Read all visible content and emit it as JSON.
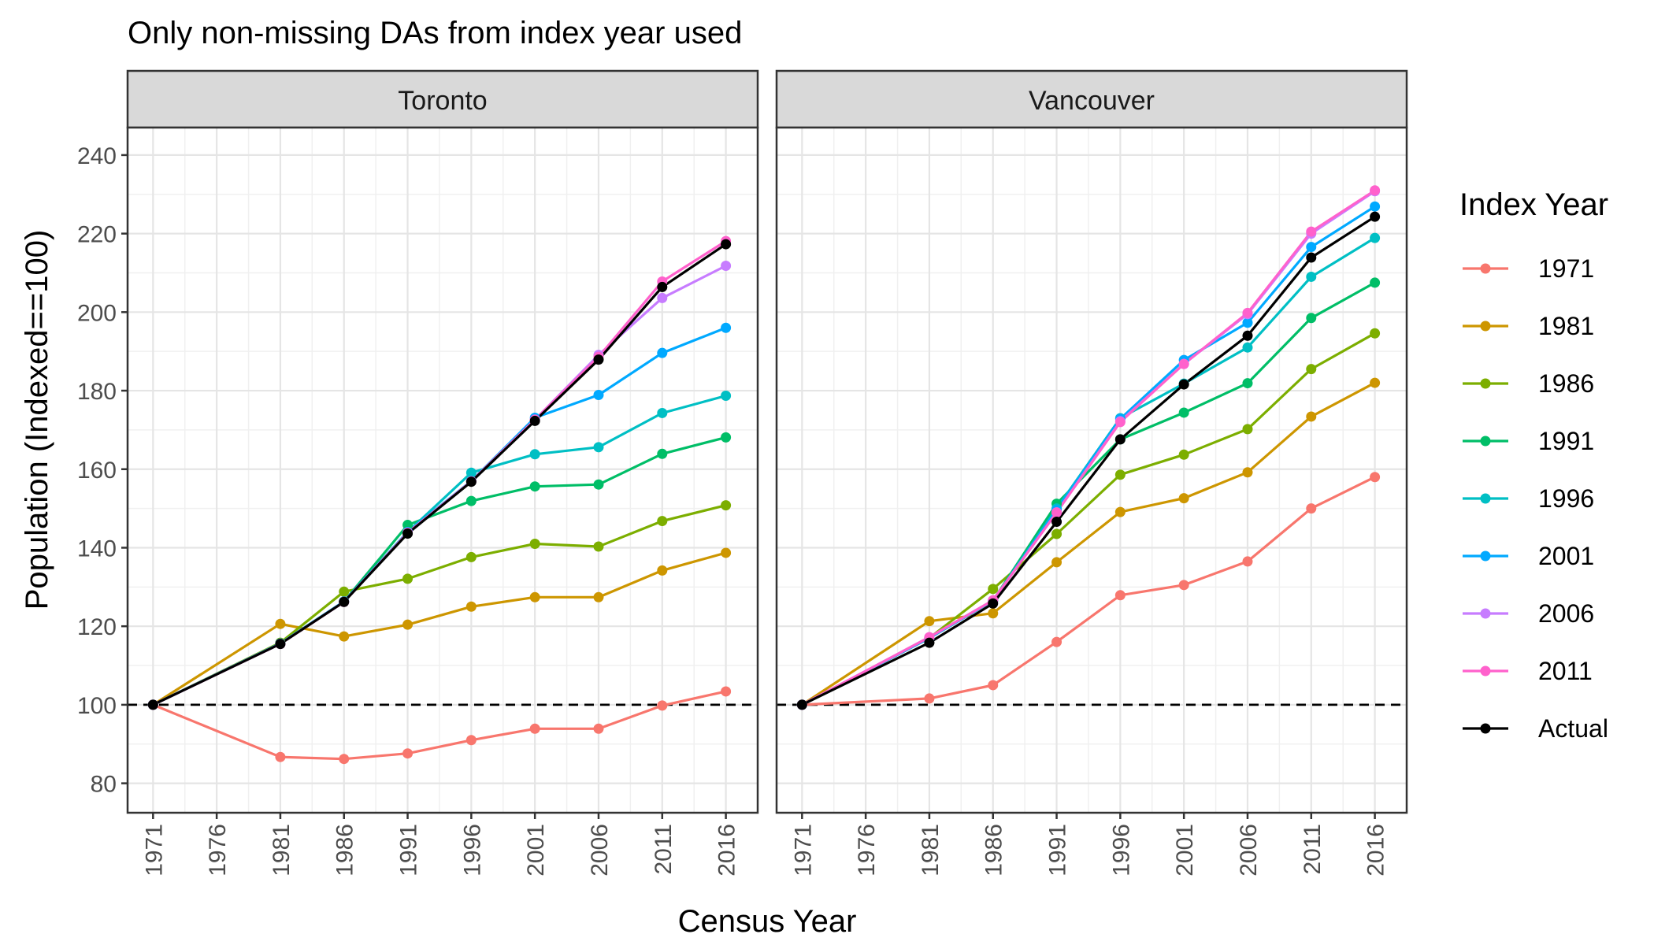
{
  "chart_data": {
    "type": "line",
    "title": "Only non-missing DAs from index year used",
    "xlabel": "Census Year",
    "ylabel": "Population (Indexed==100)",
    "x_ticks": [
      "1971",
      "1976",
      "1981",
      "1986",
      "1991",
      "1996",
      "2001",
      "2006",
      "2011",
      "2016"
    ],
    "xlim": [
      1969,
      2018.5
    ],
    "ylim": [
      72.5,
      247
    ],
    "y_ticks": [
      80,
      100,
      120,
      140,
      160,
      180,
      200,
      220,
      240
    ],
    "reference_line": {
      "y": 100,
      "style": "dashed"
    },
    "grid": true,
    "legend": {
      "title": "Index Year",
      "position": "right",
      "entries": [
        "1971",
        "1981",
        "1986",
        "1991",
        "1996",
        "2001",
        "2006",
        "2011",
        "Actual"
      ]
    },
    "colors": {
      "1971": "#F8766D",
      "1981": "#CD9600",
      "1986": "#7CAE00",
      "1991": "#00BE67",
      "1996": "#00BFC4",
      "2001": "#00A9FF",
      "2006": "#C77CFF",
      "2011": "#FF61CC",
      "Actual": "#000000"
    },
    "panels": [
      {
        "name": "Toronto",
        "series": [
          {
            "name": "1971",
            "x": [
              1971,
              1981,
              1986,
              1991,
              1996,
              2001,
              2006,
              2011,
              2016
            ],
            "y": [
              100,
              86.7,
              86.2,
              87.6,
              91.0,
              93.9,
              93.9,
              99.8,
              103.4
            ]
          },
          {
            "name": "1981",
            "x": [
              1971,
              1981,
              1986,
              1991,
              1996,
              2001,
              2006,
              2011,
              2016
            ],
            "y": [
              100,
              120.6,
              117.4,
              120.4,
              125.0,
              127.4,
              127.4,
              134.2,
              138.7
            ]
          },
          {
            "name": "1986",
            "x": [
              1971,
              1981,
              1986,
              1991,
              1996,
              2001,
              2006,
              2011,
              2016
            ],
            "y": [
              100,
              115.8,
              128.8,
              132.1,
              137.6,
              141.0,
              140.3,
              146.8,
              150.8
            ]
          },
          {
            "name": "1991",
            "x": [
              1971,
              1981,
              1986,
              1991,
              1996,
              2001,
              2006,
              2011,
              2016
            ],
            "y": [
              100,
              115.6,
              126.3,
              145.8,
              151.9,
              155.6,
              156.1,
              163.9,
              168.1
            ]
          },
          {
            "name": "1996",
            "x": [
              1971,
              1981,
              1986,
              1991,
              1996,
              2001,
              2006,
              2011,
              2016
            ],
            "y": [
              100,
              115.6,
              126.3,
              144.0,
              159.1,
              163.8,
              165.6,
              174.3,
              178.7
            ]
          },
          {
            "name": "2001",
            "x": [
              1971,
              1981,
              1986,
              1991,
              1996,
              2001,
              2006,
              2011,
              2016
            ],
            "y": [
              100,
              115.6,
              126.3,
              144.0,
              157.0,
              173.1,
              178.9,
              189.6,
              196.0
            ]
          },
          {
            "name": "2006",
            "x": [
              1971,
              1981,
              1986,
              1991,
              1996,
              2001,
              2006,
              2011,
              2016
            ],
            "y": [
              100,
              115.5,
              126.2,
              143.8,
              156.9,
              172.6,
              189.1,
              203.6,
              211.8
            ]
          },
          {
            "name": "2011",
            "x": [
              1971,
              1981,
              1986,
              1991,
              1996,
              2001,
              2006,
              2011,
              2016
            ],
            "y": [
              100,
              115.5,
              126.2,
              143.8,
              156.9,
              172.6,
              188.6,
              207.8,
              218.1
            ]
          },
          {
            "name": "Actual",
            "x": [
              1971,
              1981,
              1986,
              1991,
              1996,
              2001,
              2006,
              2011,
              2016
            ],
            "y": [
              100,
              115.5,
              126.2,
              143.6,
              156.8,
              172.3,
              187.9,
              206.4,
              217.3
            ]
          }
        ]
      },
      {
        "name": "Vancouver",
        "series": [
          {
            "name": "1971",
            "x": [
              1971,
              1981,
              1986,
              1991,
              1996,
              2001,
              2006,
              2011,
              2016
            ],
            "y": [
              100,
              101.6,
              105.0,
              116.0,
              127.9,
              130.5,
              136.5,
              150.0,
              158.0
            ]
          },
          {
            "name": "1981",
            "x": [
              1971,
              1981,
              1986,
              1991,
              1996,
              2001,
              2006,
              2011,
              2016
            ],
            "y": [
              100,
              121.3,
              123.3,
              136.3,
              149.1,
              152.6,
              159.2,
              173.4,
              182.0
            ]
          },
          {
            "name": "1986",
            "x": [
              1971,
              1981,
              1986,
              1991,
              1996,
              2001,
              2006,
              2011,
              2016
            ],
            "y": [
              100,
              117.0,
              129.5,
              143.5,
              158.6,
              163.7,
              170.2,
              185.5,
              194.6
            ]
          },
          {
            "name": "1991",
            "x": [
              1971,
              1981,
              1986,
              1991,
              1996,
              2001,
              2006,
              2011,
              2016
            ],
            "y": [
              100,
              117.0,
              126.5,
              151.2,
              167.6,
              174.4,
              181.9,
              198.5,
              207.5
            ]
          },
          {
            "name": "1996",
            "x": [
              1971,
              1981,
              1986,
              1991,
              1996,
              2001,
              2006,
              2011,
              2016
            ],
            "y": [
              100,
              117.0,
              126.5,
              150.0,
              173.0,
              181.8,
              191.0,
              209.0,
              218.9
            ]
          },
          {
            "name": "2001",
            "x": [
              1971,
              1981,
              1986,
              1991,
              1996,
              2001,
              2006,
              2011,
              2016
            ],
            "y": [
              100,
              117.0,
              126.5,
              149.6,
              172.8,
              187.8,
              197.3,
              216.6,
              226.9
            ]
          },
          {
            "name": "2006",
            "x": [
              1971,
              1981,
              1986,
              1991,
              1996,
              2001,
              2006,
              2011,
              2016
            ],
            "y": [
              100,
              117.2,
              126.6,
              149.0,
              172.2,
              186.8,
              199.5,
              220.0,
              230.8
            ]
          },
          {
            "name": "2011",
            "x": [
              1971,
              1981,
              1986,
              1991,
              1996,
              2001,
              2006,
              2011,
              2016
            ],
            "y": [
              100,
              117.2,
              126.6,
              149.0,
              172.0,
              186.8,
              199.8,
              220.5,
              231.0
            ]
          },
          {
            "name": "Actual",
            "x": [
              1971,
              1981,
              1986,
              1991,
              1996,
              2001,
              2006,
              2011,
              2016
            ],
            "y": [
              100,
              115.8,
              125.8,
              146.6,
              167.6,
              181.6,
              194.0,
              213.9,
              224.3
            ]
          }
        ]
      }
    ]
  }
}
